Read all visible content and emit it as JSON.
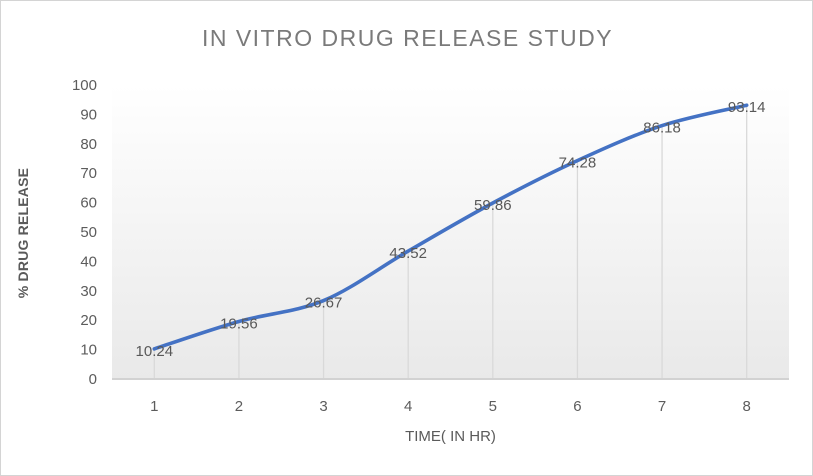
{
  "chart": {
    "title": "IN VITRO DRUG RELEASE STUDY",
    "xlabel": "TIME( IN HR)",
    "ylabel": "% DRUG RELEASE"
  },
  "chart_data": {
    "type": "line",
    "title": "IN VITRO DRUG RELEASE STUDY",
    "xlabel": "TIME( IN HR)",
    "ylabel": "% DRUG RELEASE",
    "x": [
      1,
      2,
      3,
      4,
      5,
      6,
      7,
      8
    ],
    "values": [
      10.24,
      19.56,
      26.67,
      43.52,
      59.86,
      74.28,
      86.18,
      93.14
    ],
    "data_labels": [
      "10.24",
      "19.56",
      "26.67",
      "43.52",
      "59.86",
      "74.28",
      "86.18",
      "93.14"
    ],
    "ylim": [
      0,
      100
    ],
    "ytick_step": 10,
    "yticks": [
      0,
      10,
      20,
      30,
      40,
      50,
      60,
      70,
      80,
      90,
      100
    ],
    "legend": "none",
    "grid": "vertical drop lines from points to x-axis",
    "smooth_line": true,
    "colors": {
      "line": "#4472C4",
      "axis_line": "#d2d2d2",
      "drop_line": "#d9d9d9",
      "tick_text": "#5c5c5c",
      "title_text": "#7a7a7a",
      "plot_bg_top": "#ffffff",
      "plot_bg_bottom": "#e9e9e9"
    }
  }
}
